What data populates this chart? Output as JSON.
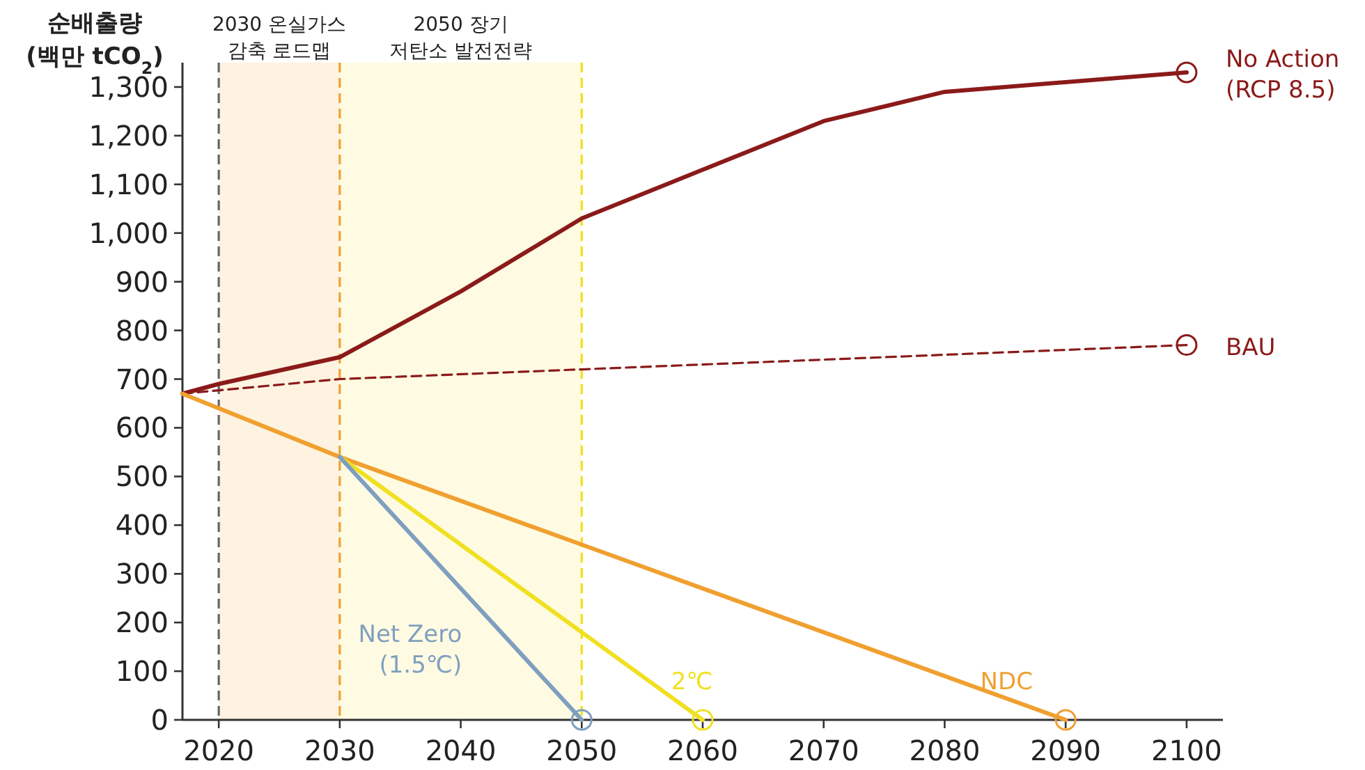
{
  "chart_data": {
    "type": "line",
    "ylabel": "순배출량\n(백만 tCO$_{2}$)",
    "x": [
      2017,
      2020,
      2030,
      2040,
      2050,
      2060,
      2070,
      2080,
      2100
    ],
    "series": [
      {
        "name": "No Action\n(RCP 8.5)",
        "color": "#8b1a1a",
        "values": [
          670,
          690,
          745,
          880,
          1030,
          1130,
          1230,
          1290,
          1330
        ]
      },
      {
        "name": "BAU",
        "color": "#8b1a1a",
        "line_style": "dashed",
        "x": [
          2017,
          2030,
          2050,
          2100
        ],
        "values": [
          670,
          700,
          720,
          770
        ]
      },
      {
        "name": "NDC",
        "color": "#f0a030",
        "x": [
          2017,
          2030,
          2050,
          2090
        ],
        "values": [
          670,
          540,
          360,
          0
        ]
      },
      {
        "name": "2℃",
        "color": "#f0e020",
        "x": [
          2030,
          2050,
          2060
        ],
        "values": [
          540,
          180,
          0
        ]
      },
      {
        "name": "Net Zero\n(1.5℃)",
        "color": "#7f9fc0",
        "x": [
          2030,
          2050
        ],
        "values": [
          540,
          0
        ]
      }
    ],
    "xlim": [
      2017,
      2103
    ],
    "ylim": [
      0,
      1350
    ],
    "xticks": [
      2020,
      2030,
      2040,
      2050,
      2060,
      2070,
      2080,
      2090,
      2100
    ],
    "yticks": [
      0,
      100,
      200,
      300,
      400,
      500,
      600,
      700,
      800,
      900,
      {
        "value": 1000,
        "label": "1,000"
      },
      {
        "value": 1100,
        "label": "1,100"
      },
      {
        "value": 1200,
        "label": "1,200"
      },
      {
        "value": 1300,
        "label": "1,300"
      }
    ],
    "bands": [
      {
        "axis": "x",
        "from": 2020,
        "to": 2030,
        "label": "2030 온실가스\n감축 로드맵",
        "color": "#fdf3e0"
      },
      {
        "axis": "x",
        "from": 2030,
        "to": 2050,
        "label": "2050 장기\n저탄소 발전전략",
        "color": "#fefbe2"
      }
    ],
    "ref_lines": [
      {
        "axis": "x",
        "value": 2020,
        "color": "#666666",
        "line_style": "dashed"
      },
      {
        "axis": "x",
        "value": 2030,
        "color": "#f0a030",
        "line_style": "dashed"
      },
      {
        "axis": "x",
        "value": 2050,
        "color": "#f0e020",
        "line_style": "dashed"
      }
    ],
    "grid": false
  }
}
